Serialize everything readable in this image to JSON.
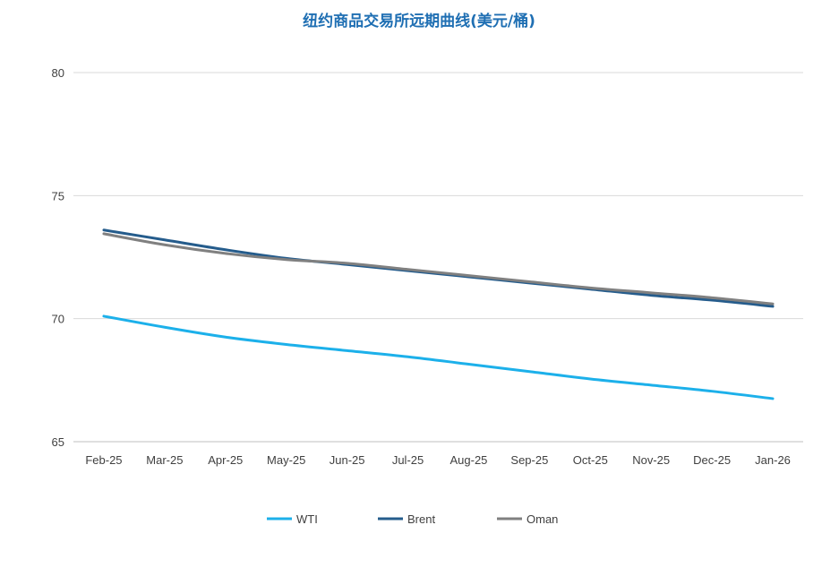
{
  "chart_data": {
    "type": "line",
    "title": "纽约商品交易所远期曲线(美元/桶)",
    "xlabel": "",
    "ylabel": "",
    "categories": [
      "Feb-25",
      "Mar-25",
      "Apr-25",
      "May-25",
      "Jun-25",
      "Jul-25",
      "Aug-25",
      "Sep-25",
      "Oct-25",
      "Nov-25",
      "Dec-25",
      "Jan-26"
    ],
    "ylim": [
      65,
      80
    ],
    "yticks": [
      65,
      70,
      75,
      80
    ],
    "grid": true,
    "legend_position": "bottom",
    "series": [
      {
        "name": "WTI",
        "color": "#1cb0ea",
        "values": [
          70.1,
          69.65,
          69.25,
          68.95,
          68.7,
          68.45,
          68.15,
          67.85,
          67.55,
          67.3,
          67.05,
          66.75
        ]
      },
      {
        "name": "Brent",
        "color": "#255c8c",
        "values": [
          73.6,
          73.2,
          72.8,
          72.45,
          72.2,
          71.95,
          71.7,
          71.45,
          71.2,
          70.95,
          70.75,
          70.5
        ]
      },
      {
        "name": "Oman",
        "color": "#808080",
        "values": [
          73.45,
          73.0,
          72.65,
          72.4,
          72.25,
          72.0,
          71.75,
          71.5,
          71.25,
          71.05,
          70.85,
          70.6
        ]
      }
    ]
  }
}
